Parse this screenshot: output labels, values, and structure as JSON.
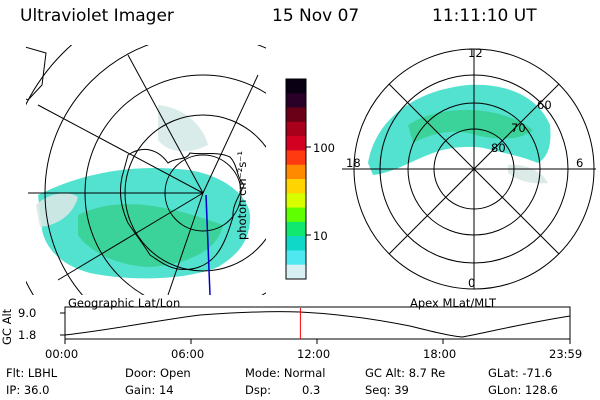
{
  "header": {
    "title": "Ultraviolet Imager",
    "date": "15 Nov 07",
    "time": "11:11:10 UT"
  },
  "left_map": {
    "projection_label": "Geographic Lat/Lon"
  },
  "right_map": {
    "projection_label": "Apex MLat/MLT",
    "mlt_labels": {
      "top": "12",
      "left": "18",
      "right": "6",
      "bottom": "0"
    },
    "lat_labels": [
      "60",
      "70",
      "80"
    ]
  },
  "colorbar": {
    "unit_label": "photon cm⁻²s⁻¹",
    "ticks": [
      "100",
      "10"
    ],
    "colors": [
      "#0a0014",
      "#2a0028",
      "#6a0018",
      "#a8001a",
      "#d40022",
      "#ff3a10",
      "#ff8a00",
      "#ffd400",
      "#d8ff00",
      "#60ff00",
      "#10e870",
      "#10d8c8",
      "#50e8f0",
      "#d8f0f4"
    ]
  },
  "altitude_plot": {
    "ylabel": "GC Alt",
    "yticks": [
      "9.0",
      "1.8"
    ],
    "xticks": [
      "00:00",
      "06:00",
      "12:00",
      "18:00",
      "23:59"
    ],
    "current_time_fraction": 0.4661
  },
  "info": {
    "flt_label": "Flt: LBHL",
    "ip_label": "IP: 36.0",
    "door_label": "Door: Open",
    "gain_label": "Gain: 14",
    "mode_label": "Mode: Normal",
    "dsp_label": "Dsp:",
    "dsp_value": "0.3",
    "gcalt_label": "GC Alt: 8.7 Re",
    "seq_label": "Seq: 39",
    "glat_label": "GLat: -71.6",
    "glon_label": "GLon: 128.6"
  },
  "colors": {
    "aurora_cyan": "#35dcc8",
    "aurora_green": "#2ac870",
    "marker_red": "#ff0000",
    "meridian_blue": "#0000cc"
  }
}
